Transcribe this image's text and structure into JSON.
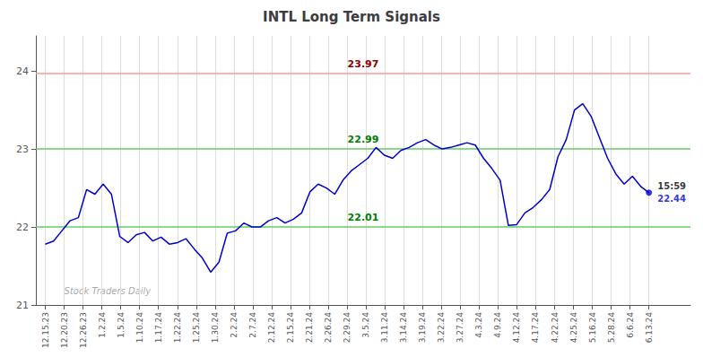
{
  "chart_data": {
    "type": "line",
    "title": "INTL Long Term Signals",
    "x": [
      0,
      0.4384,
      0.8767,
      1.3151,
      1.7534,
      2.1918,
      2.6301,
      3.0685,
      3.5068,
      3.9452,
      4.3836,
      4.8219,
      5.2603,
      5.6986,
      6.137,
      6.5753,
      7.0137,
      7.4521,
      7.8904,
      8.3288,
      8.7671,
      9.2055,
      9.6438,
      10.0822,
      10.5205,
      10.9589,
      11.3973,
      11.8356,
      12.274,
      12.7123,
      13.1507,
      13.589,
      14.0274,
      14.4658,
      14.9041,
      15.3425,
      15.7808,
      16.2192,
      16.6575,
      17.0959,
      17.5342,
      17.9726,
      18.411,
      18.8493,
      19.2877,
      19.726,
      20.1644,
      20.6027,
      21.0411,
      21.4795,
      21.9178,
      22.3562,
      22.7945,
      23.2329,
      23.6712,
      24.1096,
      24.5479,
      24.9863,
      25.4247,
      25.863,
      26.3014,
      26.7397,
      27.1781,
      27.6164,
      28.0548,
      28.4932,
      28.9315,
      29.3699,
      29.8082,
      30.2466,
      30.6849,
      31.1233,
      31.5616,
      32
    ],
    "values": [
      21.78,
      21.82,
      21.95,
      22.08,
      22.12,
      22.48,
      22.42,
      22.55,
      22.42,
      21.88,
      21.8,
      21.9,
      21.93,
      21.82,
      21.87,
      21.78,
      21.8,
      21.85,
      21.72,
      21.6,
      21.42,
      21.55,
      21.92,
      21.95,
      22.05,
      22.0,
      22.0,
      22.08,
      22.12,
      22.05,
      22.1,
      22.18,
      22.45,
      22.55,
      22.5,
      22.42,
      22.6,
      22.72,
      22.8,
      22.88,
      23.02,
      22.92,
      22.88,
      22.98,
      23.02,
      23.08,
      23.12,
      23.05,
      23.0,
      23.02,
      23.05,
      23.08,
      23.05,
      22.88,
      22.75,
      22.6,
      22.02,
      22.03,
      22.18,
      22.25,
      22.35,
      22.48,
      22.9,
      23.12,
      23.5,
      23.58,
      23.42,
      23.15,
      22.88,
      22.68,
      22.55,
      22.65,
      22.52,
      22.44
    ],
    "color": "#0000cc",
    "xlim": [
      -0.5,
      34.2
    ],
    "xticks": [
      {
        "value": 0,
        "label": "12.15.23"
      },
      {
        "value": 1,
        "label": "12.20.23"
      },
      {
        "value": 2,
        "label": "12.26.23"
      },
      {
        "value": 3,
        "label": "1.2.24"
      },
      {
        "value": 4,
        "label": "1.5.24"
      },
      {
        "value": 5,
        "label": "1.10.24"
      },
      {
        "value": 6,
        "label": "1.17.24"
      },
      {
        "value": 7,
        "label": "1.22.24"
      },
      {
        "value": 8,
        "label": "1.25.24"
      },
      {
        "value": 9,
        "label": "1.30.24"
      },
      {
        "value": 10,
        "label": "2.2.24"
      },
      {
        "value": 11,
        "label": "2.7.24"
      },
      {
        "value": 12,
        "label": "2.12.24"
      },
      {
        "value": 13,
        "label": "2.15.24"
      },
      {
        "value": 14,
        "label": "2.21.24"
      },
      {
        "value": 15,
        "label": "2.26.24"
      },
      {
        "value": 16,
        "label": "2.29.24"
      },
      {
        "value": 17,
        "label": "3.5.24"
      },
      {
        "value": 18,
        "label": "3.11.24"
      },
      {
        "value": 19,
        "label": "3.14.24"
      },
      {
        "value": 20,
        "label": "3.19.24"
      },
      {
        "value": 21,
        "label": "3.22.24"
      },
      {
        "value": 22,
        "label": "3.27.24"
      },
      {
        "value": 23,
        "label": "4.3.24"
      },
      {
        "value": 24,
        "label": "4.9.24"
      },
      {
        "value": 25,
        "label": "4.12.24"
      },
      {
        "value": 26,
        "label": "4.17.24"
      },
      {
        "value": 27,
        "label": "4.22.24"
      },
      {
        "value": 28,
        "label": "4.25.24"
      },
      {
        "value": 29,
        "label": "5.16.24"
      },
      {
        "value": 30,
        "label": "5.28.24"
      },
      {
        "value": 31,
        "label": "6.6.24"
      },
      {
        "value": 32,
        "label": "6.13.24"
      }
    ],
    "ylim": [
      21.0,
      24.45
    ],
    "yticks": [
      21,
      22,
      23,
      24
    ],
    "grid": "x",
    "hlines": [
      {
        "value": 23.97,
        "label": "23.97",
        "color": "#ff9999",
        "label_color": "darkred"
      },
      {
        "value": 23.0,
        "label": "22.99",
        "color": "#66cc66",
        "label_color": "green"
      },
      {
        "value": 22.0,
        "label": "22.01",
        "color": "#66cc66",
        "label_color": "green"
      }
    ],
    "last_point": {
      "time_label": "15:59",
      "price_label": "22.44",
      "color": "#0000cc"
    },
    "annotations": [
      {
        "text": "Stock Traders Daily",
        "x": 1.0,
        "y": 21.18,
        "color": "gray"
      }
    ]
  }
}
